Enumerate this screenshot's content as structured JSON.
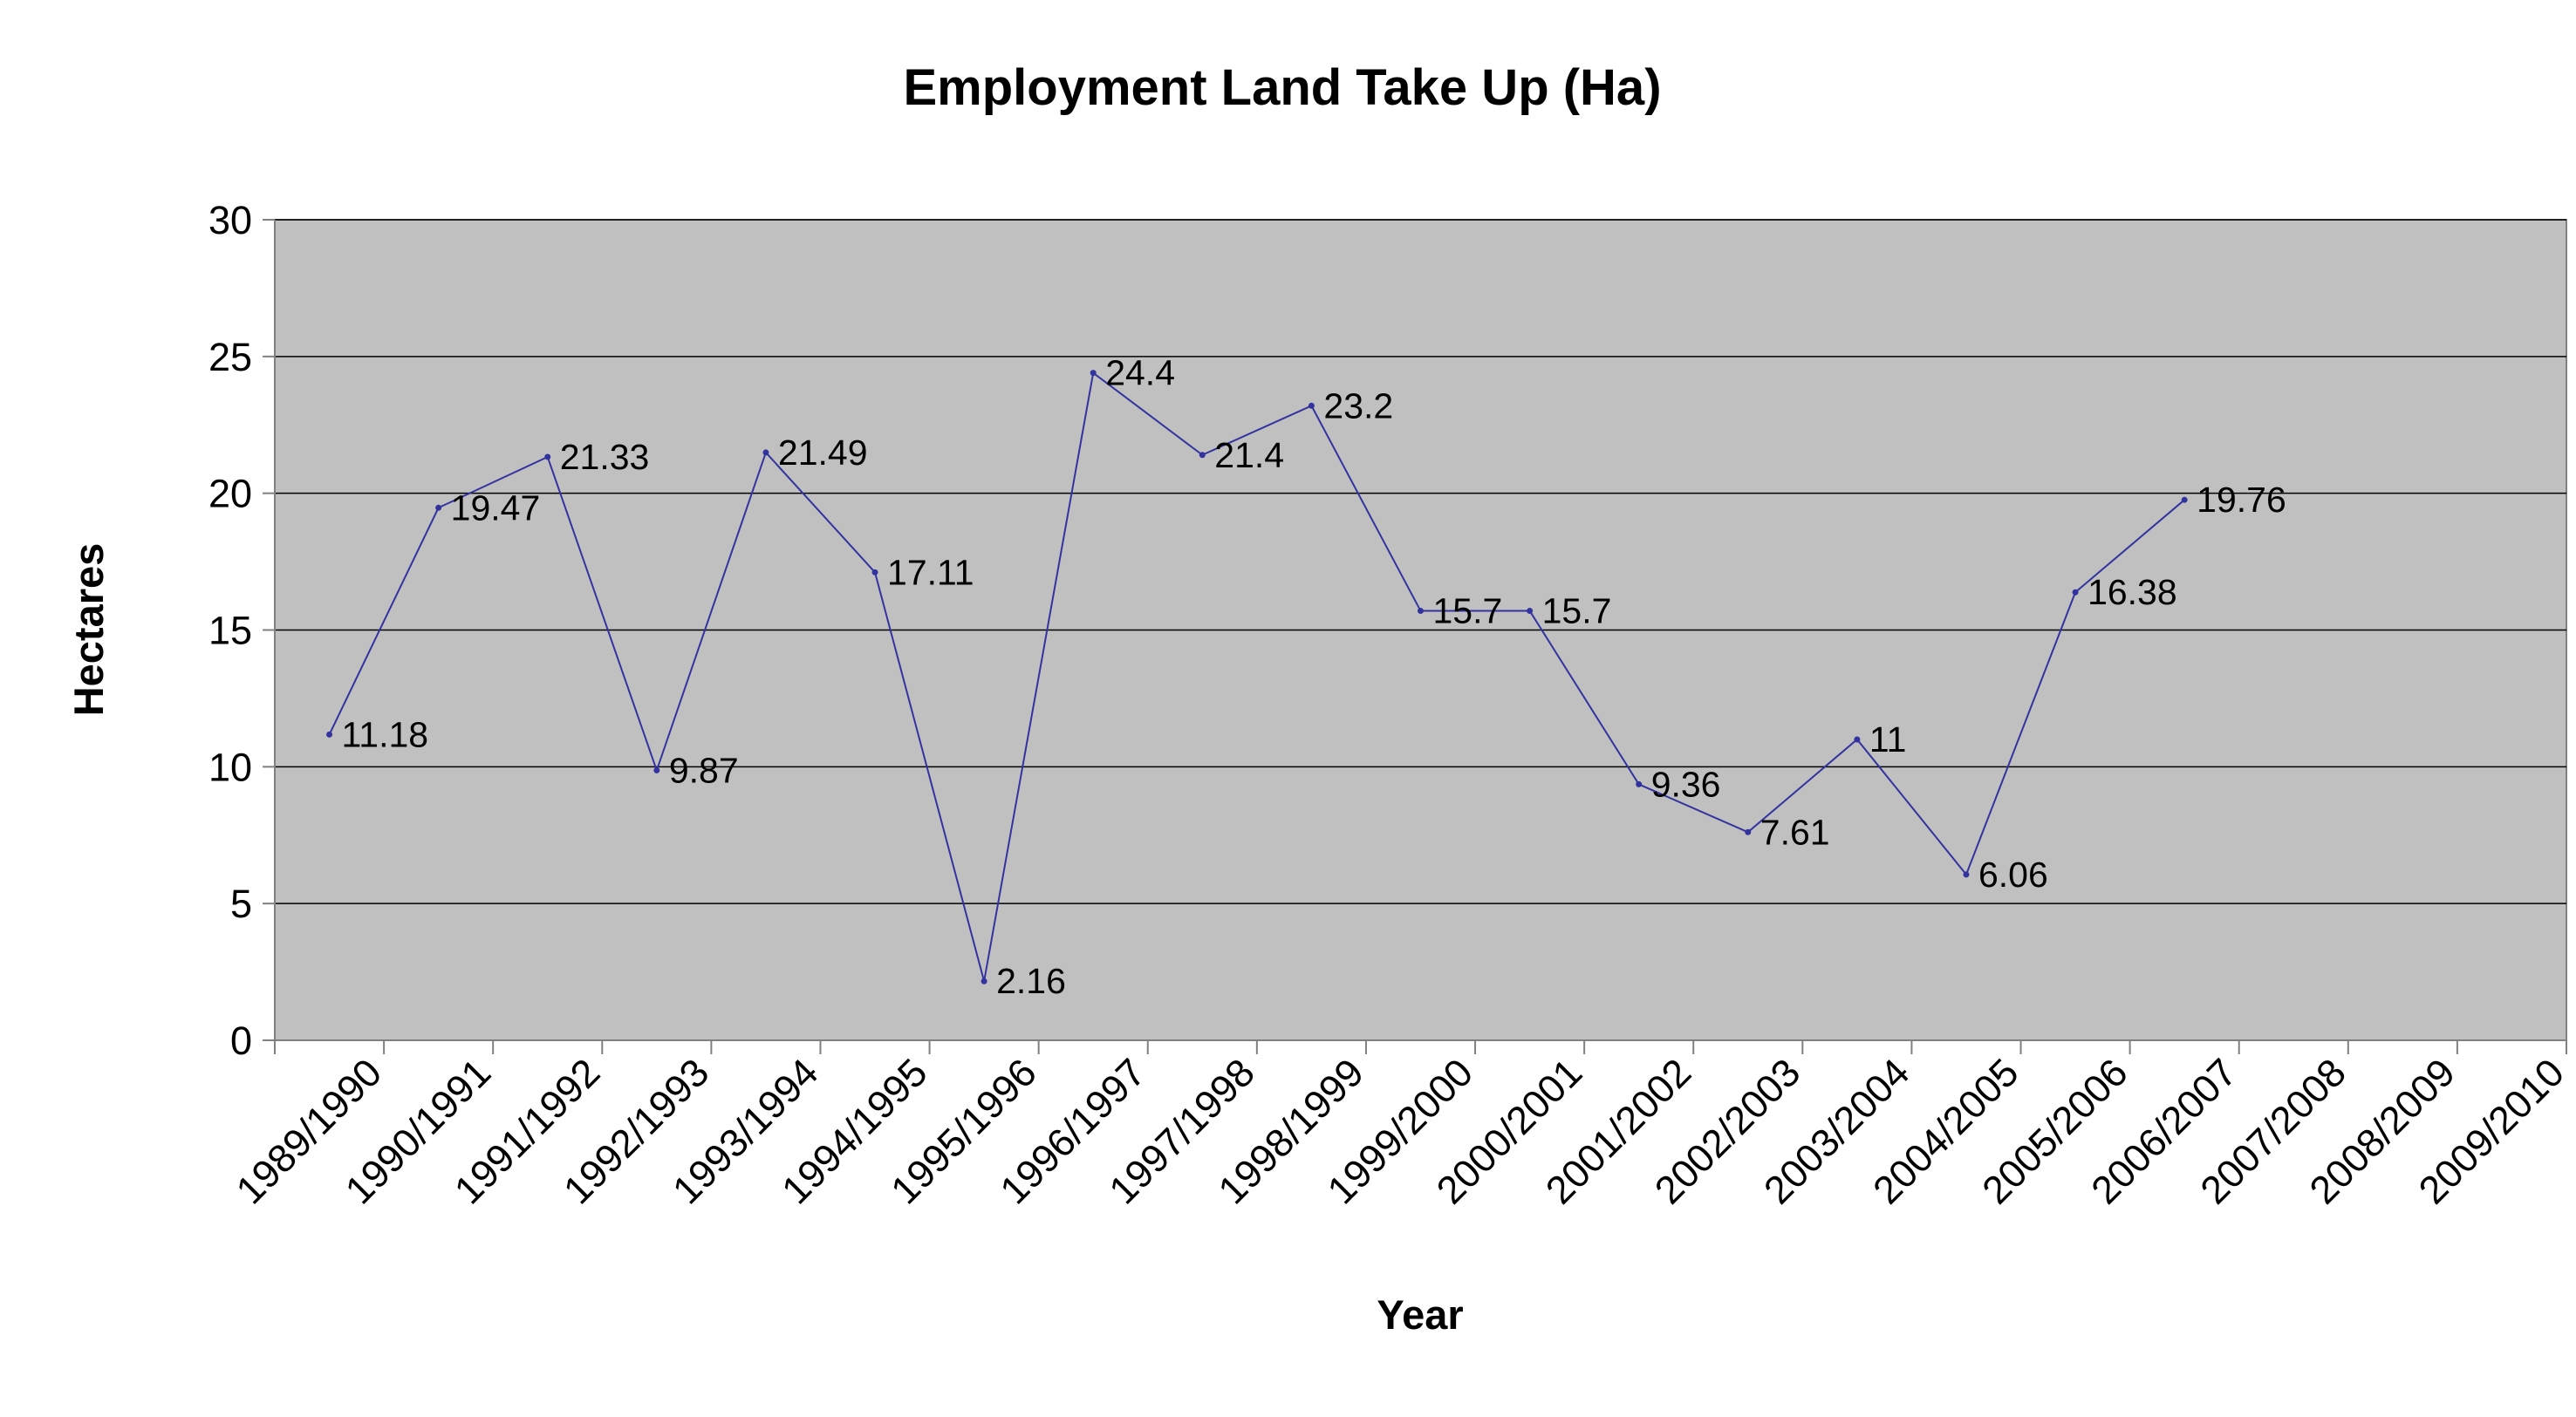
{
  "chart_data": {
    "type": "line",
    "title": "Employment Land Take Up (Ha)",
    "xlabel": "Year",
    "ylabel": "Hectares",
    "categories": [
      "1989/1990",
      "1990/1991",
      "1991/1992",
      "1992/1993",
      "1993/1994",
      "1994/1995",
      "1995/1996",
      "1996/1997",
      "1997/1998",
      "1998/1999",
      "1999/2000",
      "2000/2001",
      "2001/2002",
      "2002/2003",
      "2003/2004",
      "2004/2005",
      "2005/2006",
      "2006/2007",
      "2007/2008",
      "2008/2009",
      "2009/2010"
    ],
    "series": [
      {
        "values": [
          11.18,
          19.47,
          21.33,
          9.87,
          21.49,
          17.11,
          2.16,
          24.4,
          21.4,
          23.2,
          15.7,
          15.7,
          9.36,
          7.61,
          11,
          6.06,
          16.38,
          19.76,
          null,
          null,
          null
        ],
        "labels": [
          "11.18",
          "19.47",
          "21.33",
          "9.87",
          "21.49",
          "17.11",
          "2.16",
          "24.4",
          "21.4",
          "23.2",
          "15.7",
          "15.7",
          "9.36",
          "7.61",
          "11",
          "6.06",
          "16.38",
          "19.76",
          null,
          null,
          null
        ]
      }
    ],
    "ylim": [
      0,
      30
    ],
    "yticks": [
      "0",
      "5",
      "10",
      "15",
      "20",
      "25",
      "30"
    ],
    "grid": true,
    "legend": "none",
    "colors": {
      "plot_background": "#c0c0c0",
      "line": "#3333a0",
      "gridline": "#000000",
      "axis": "#808080"
    }
  }
}
